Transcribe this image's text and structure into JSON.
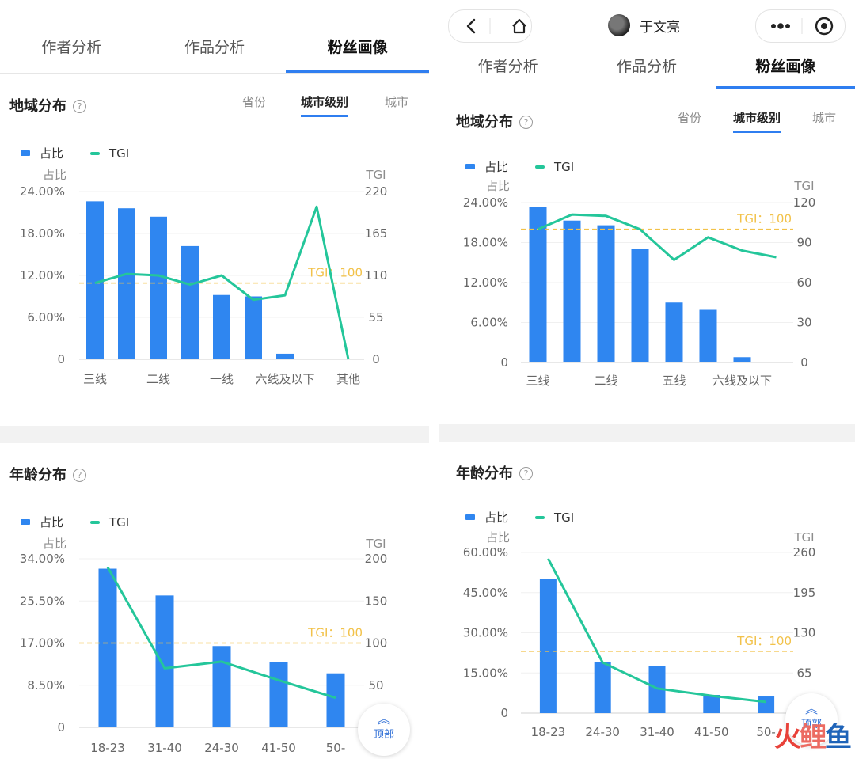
{
  "left": {
    "tabs": [
      "作者分析",
      "作品分析",
      "粉丝画像"
    ],
    "region": {
      "title": "地域分布",
      "subtabs": [
        "省份",
        "城市级别",
        "城市"
      ],
      "legend": {
        "bar": "占比",
        "line": "TGI"
      }
    },
    "age": {
      "title": "年龄分布",
      "legend": {
        "bar": "占比",
        "line": "TGI"
      }
    },
    "top_button": "顶部"
  },
  "right": {
    "nav": {
      "title": "于文亮",
      "more_icon": "more-dots-icon",
      "target_icon": "target-icon",
      "back_icon": "back-icon",
      "home_icon": "home-icon"
    },
    "tabs": [
      "作者分析",
      "作品分析",
      "粉丝画像"
    ],
    "region": {
      "title": "地域分布",
      "subtabs": [
        "省份",
        "城市级别",
        "城市"
      ],
      "legend": {
        "bar": "占比",
        "line": "TGI"
      }
    },
    "age": {
      "title": "年龄分布",
      "legend": {
        "bar": "占比",
        "line": "TGI"
      }
    },
    "top_button": "顶部",
    "watermark": {
      "fire": "火",
      "carp": "鲤",
      "fish": "鱼"
    }
  },
  "colors": {
    "bar": "#2f86f0",
    "line": "#24c69a",
    "ref": "#f2c24a",
    "accent": "#2f7ef0"
  },
  "chart_data": [
    {
      "id": "left-region",
      "type": "bar+line",
      "ylabel_left": "占比",
      "ylabel_right": "TGI",
      "yticks_left": [
        "24.00%",
        "18.00%",
        "12.00%",
        "6.00%",
        "0"
      ],
      "yticks_right": [
        "220",
        "165",
        "110",
        "55",
        "0"
      ],
      "ylim_left": [
        0,
        24
      ],
      "ylim_right": [
        0,
        220
      ],
      "categories": [
        "三线",
        "",
        "二线",
        "",
        "一线",
        "",
        "六线及以下",
        "",
        "其他"
      ],
      "bar_values": [
        22.6,
        21.6,
        20.4,
        16.2,
        9.2,
        9.0,
        0.8,
        0.1,
        0
      ],
      "tgi_values": [
        100,
        112,
        110,
        98,
        110,
        78,
        84,
        200,
        0
      ],
      "reference": {
        "label": "TGI：100",
        "value": 100
      },
      "legend": [
        "占比",
        "TGI"
      ]
    },
    {
      "id": "left-age",
      "type": "bar+line",
      "ylabel_left": "占比",
      "ylabel_right": "TGI",
      "yticks_left": [
        "34.00%",
        "25.50%",
        "17.00%",
        "8.50%",
        "0"
      ],
      "yticks_right": [
        "200",
        "150",
        "100",
        "50",
        "0"
      ],
      "ylim_left": [
        0,
        34
      ],
      "ylim_right": [
        0,
        200
      ],
      "categories": [
        "18-23",
        "31-40",
        "24-30",
        "41-50",
        "50-"
      ],
      "bar_values": [
        32.0,
        26.6,
        16.4,
        13.2,
        10.9
      ],
      "tgi_values": [
        190,
        70,
        78,
        56,
        35
      ],
      "reference": {
        "label": "TGI：100",
        "value": 100
      },
      "legend": [
        "占比",
        "TGI"
      ]
    },
    {
      "id": "right-region",
      "type": "bar+line",
      "ylabel_left": "占比",
      "ylabel_right": "TGI",
      "yticks_left": [
        "24.00%",
        "18.00%",
        "12.00%",
        "6.00%",
        "0"
      ],
      "yticks_right": [
        "120",
        "90",
        "60",
        "30",
        "0"
      ],
      "ylim_left": [
        0,
        24
      ],
      "ylim_right": [
        0,
        120
      ],
      "categories": [
        "三线",
        "",
        "二线",
        "",
        "五线",
        "",
        "六线及以下",
        ""
      ],
      "bar_values": [
        23.3,
        21.3,
        20.6,
        17.1,
        9.0,
        7.9,
        0.8,
        0
      ],
      "tgi_values": [
        100,
        111,
        110,
        100,
        77,
        94,
        84,
        79
      ],
      "reference": {
        "label": "TGI：100",
        "value": 100
      },
      "legend": [
        "占比",
        "TGI"
      ]
    },
    {
      "id": "right-age",
      "type": "bar+line",
      "ylabel_left": "占比",
      "ylabel_right": "TGI",
      "yticks_left": [
        "60.00%",
        "45.00%",
        "30.00%",
        "15.00%",
        "0"
      ],
      "yticks_right": [
        "260",
        "195",
        "130",
        "65",
        "0"
      ],
      "ylim_left": [
        0,
        60
      ],
      "ylim_right": [
        0,
        260
      ],
      "categories": [
        "18-23",
        "24-30",
        "31-40",
        "41-50",
        "50-"
      ],
      "bar_values": [
        50.0,
        19.0,
        17.5,
        6.8,
        6.2
      ],
      "tgi_values": [
        250,
        82,
        40,
        28,
        18
      ],
      "reference": {
        "label": "TGI：100",
        "value": 100
      },
      "legend": [
        "占比",
        "TGI"
      ]
    }
  ]
}
